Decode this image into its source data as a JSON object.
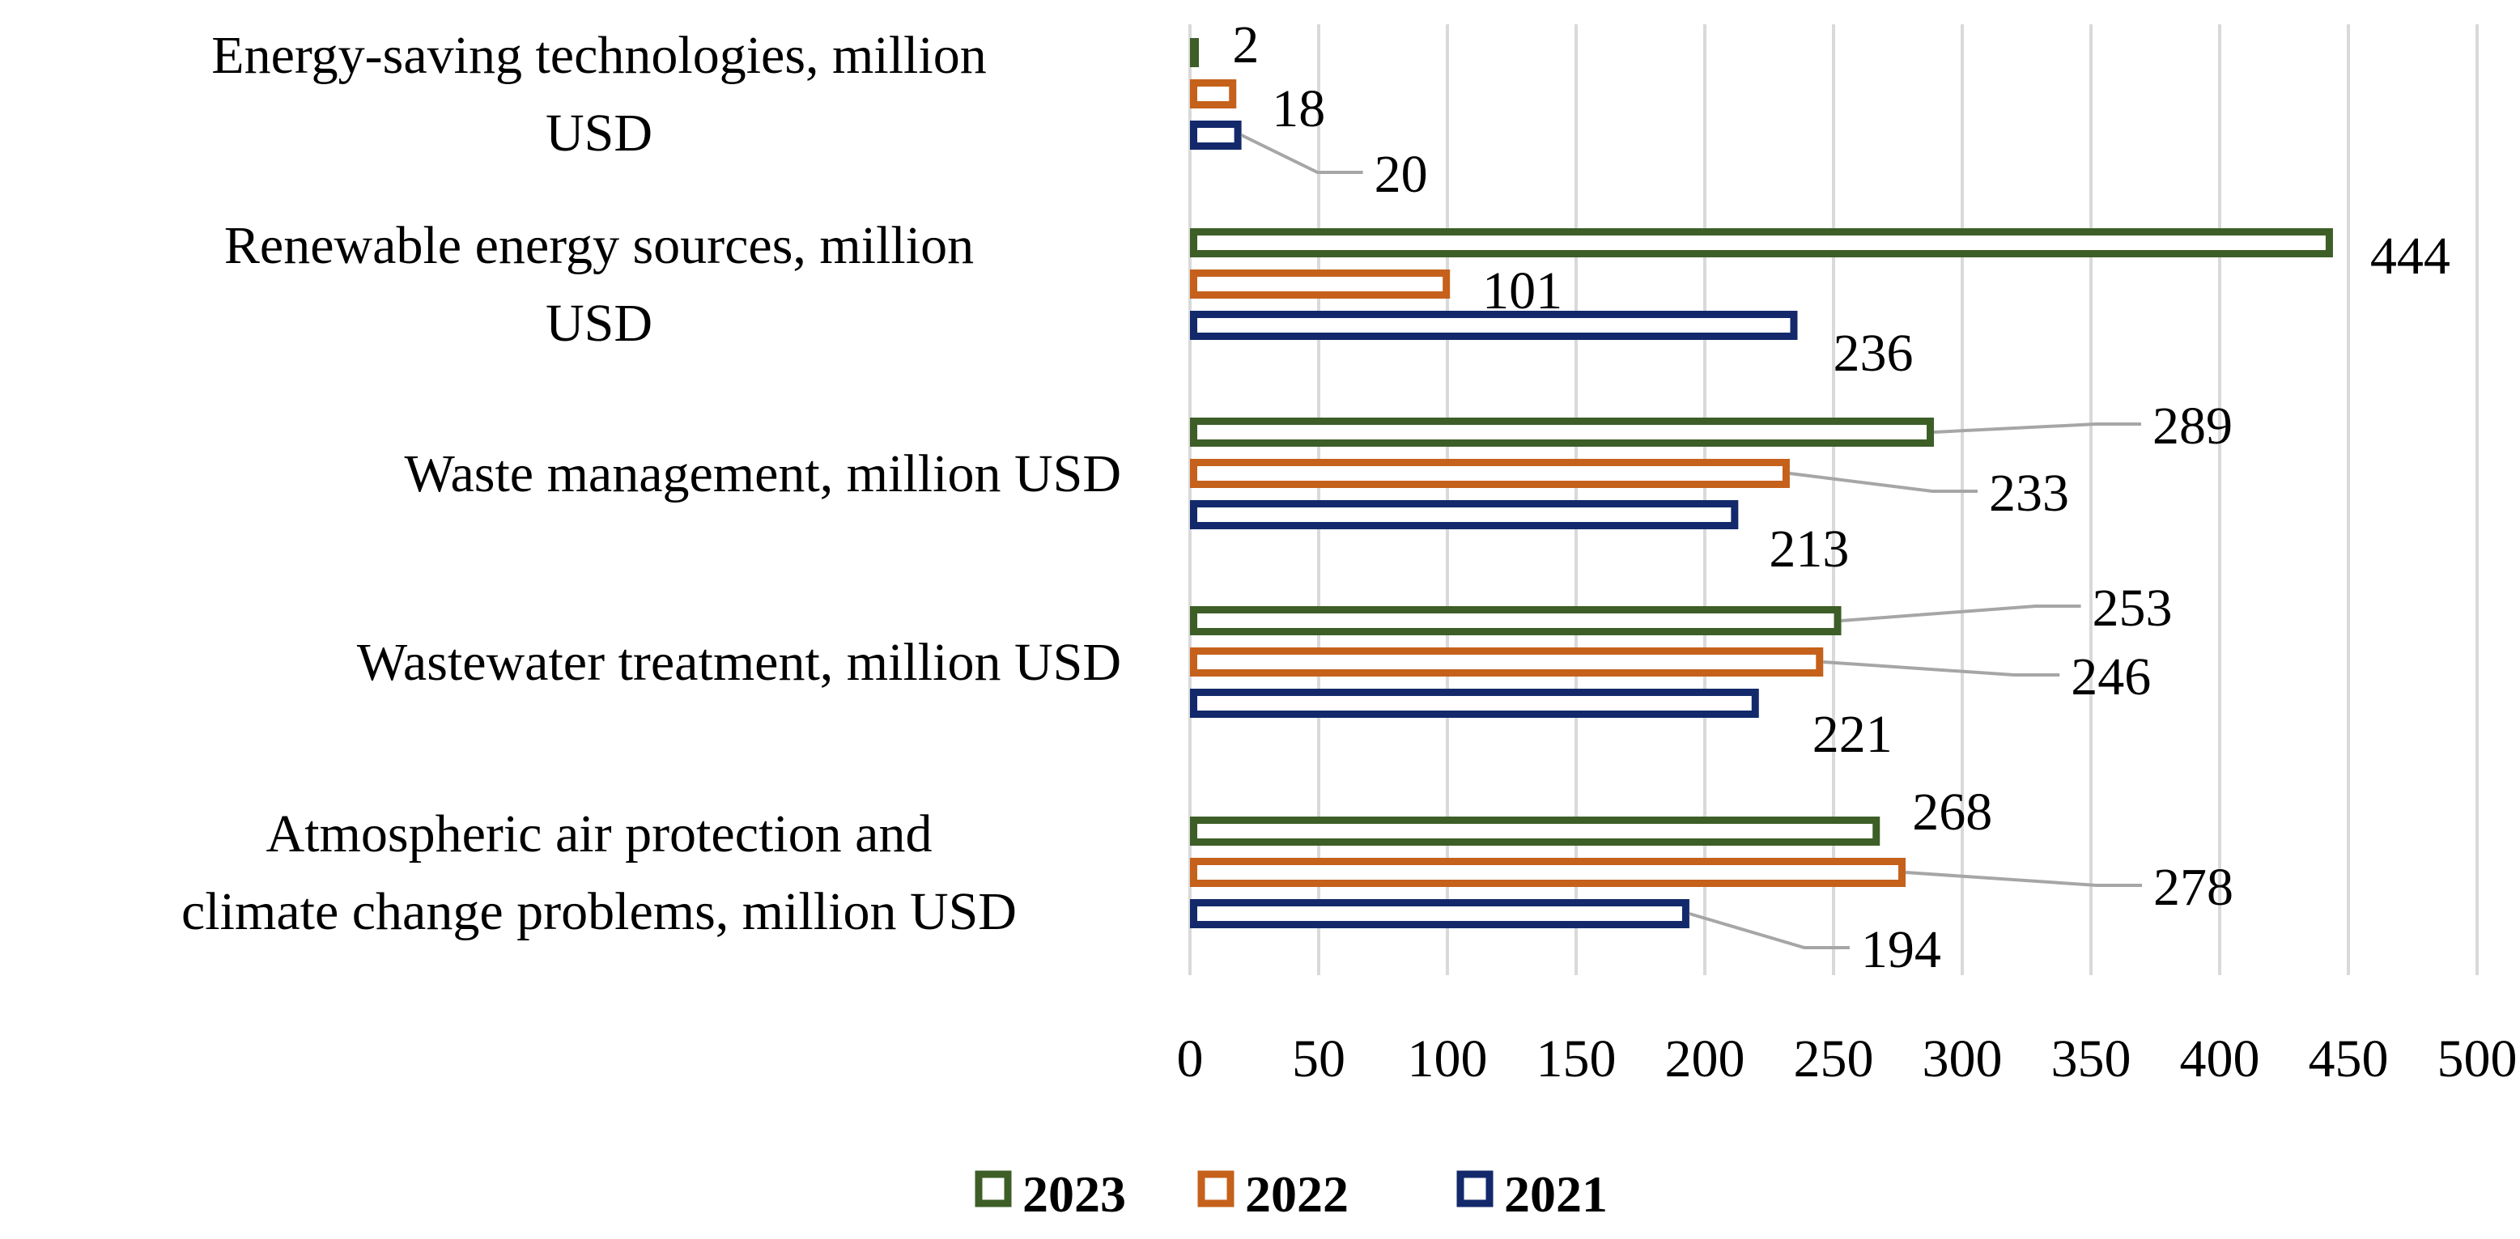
{
  "chart_data": {
    "type": "bar",
    "orientation": "horizontal",
    "categories": [
      "Energy-saving technologies, million USD",
      "Renewable energy sources, million USD",
      "Waste management, million USD",
      "Wastewater treatment, million USD",
      "Atmospheric air protection and climate change problems, million USD"
    ],
    "series": [
      {
        "name": "2023",
        "color": "#3d5e27",
        "values": [
          2,
          444,
          289,
          253,
          268
        ]
      },
      {
        "name": "2022",
        "color": "#c5611b",
        "values": [
          18,
          101,
          233,
          246,
          278
        ]
      },
      {
        "name": "2021",
        "color": "#13296b",
        "values": [
          20,
          236,
          213,
          221,
          194
        ]
      }
    ],
    "xlim": [
      0,
      500
    ],
    "xticks": [
      "0",
      "50",
      "100",
      "150",
      "200",
      "250",
      "300",
      "350",
      "400",
      "450",
      "500"
    ],
    "grid": "vertical",
    "legend_position": "bottom",
    "bar_style": "hollow outline"
  }
}
